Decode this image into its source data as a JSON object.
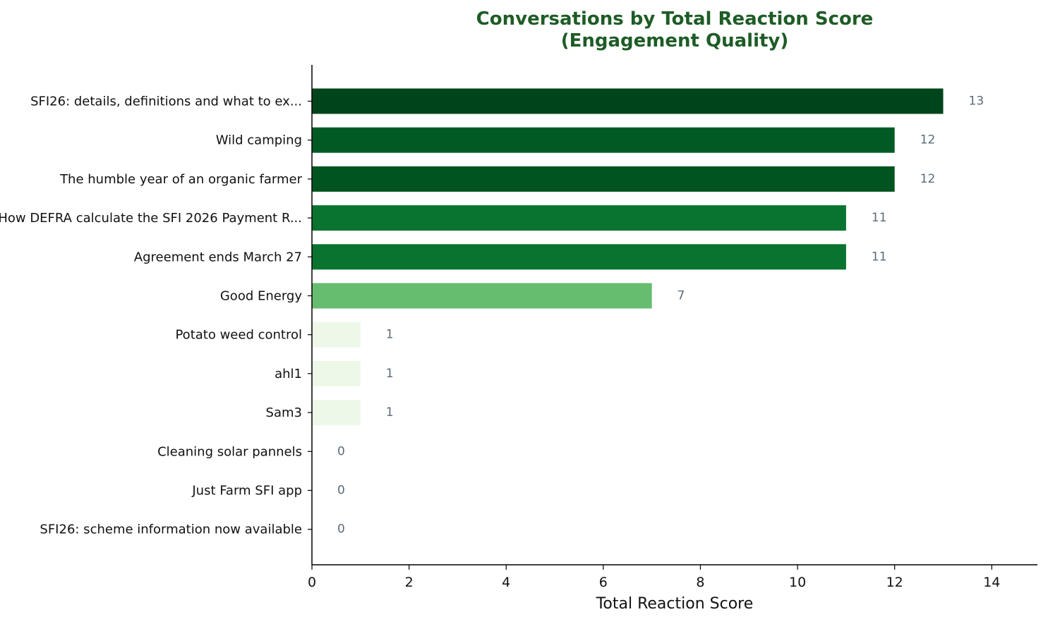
{
  "chart_data": {
    "type": "bar",
    "orientation": "horizontal",
    "title": "Conversations by Total Reaction Score\n(Engagement Quality)",
    "xlabel": "Total Reaction Score",
    "ylabel": "",
    "xlim": [
      0,
      14.94
    ],
    "xticks": [
      0,
      2,
      4,
      6,
      8,
      10,
      12,
      14
    ],
    "grid": false,
    "categories": [
      "SFI26: details, definitions and what to ex...",
      "Wild camping",
      "The humble year of an organic farmer",
      "How DEFRA calculate the SFI 2026 Payment R...",
      "Agreement ends March 27",
      "Good Energy",
      "Potato weed control",
      "ahl1",
      "Sam3",
      "Cleaning solar pannels",
      "Just Farm SFI app",
      "SFI26: scheme information  now available"
    ],
    "values": [
      13,
      12,
      12,
      11,
      11,
      7,
      1,
      1,
      1,
      0,
      0,
      0
    ],
    "colors": [
      "#00441b",
      "#005a24",
      "#00541f",
      "#08742f",
      "#08742f",
      "#66bd6f",
      "#edf8e8",
      "#edf8e8",
      "#edf8e8",
      "#ffffff",
      "#ffffff",
      "#ffffff"
    ],
    "title_color": "#1e5c26",
    "value_label_color": "#5a6b78"
  }
}
